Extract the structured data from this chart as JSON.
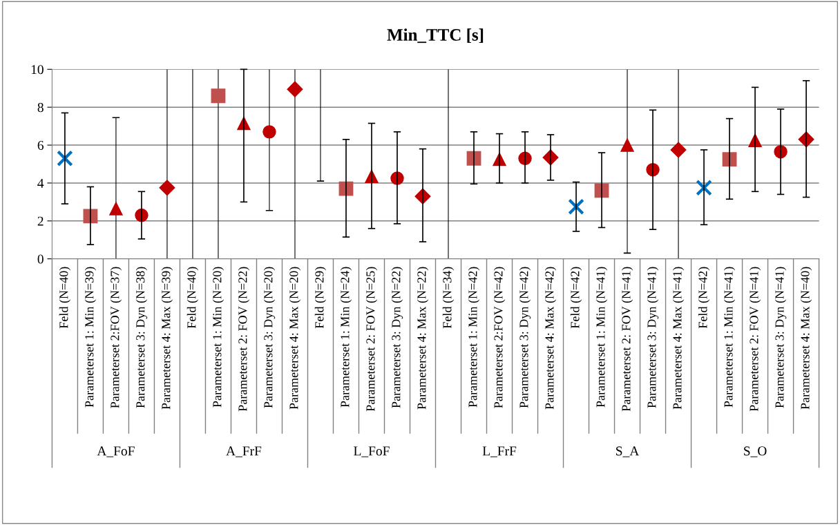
{
  "chart_data": {
    "type": "scatter",
    "title": "Min_TTC [s]",
    "categories": [
      "Feld (N=40)",
      "Parameterset 1: Min (N=39)",
      "Parameterset 2:FOV (N=37)",
      "Parameterset 3: Dyn (N=38)",
      "Parameterset 4: Max (N=39)",
      "Feld (N=40)",
      "Parameterset 1: Min (N=20)",
      "Parameterset 2: FOV (N=22)",
      "Parameterset 3: Dyn (N=20)",
      "Parameterset 4: Max (N=20)",
      "Feld (N=29)",
      "Parameterset 1: Min (N=24)",
      "Parameterset 2: FOV (N=25)",
      "Parameterset 3: Dyn (N=22)",
      "Parameterset 4: Max (N=22)",
      "Feld (N=34)",
      "Parameterset 1: Min (N=42)",
      "Parameterset 2:FOV (N=42)",
      "Parameterset 3: Dyn (N=42)",
      "Parameterset 4: Max (N=42)",
      "Feld (N=42)",
      "Parameterset 1: Min (N=41)",
      "Parameterset 2: FOV (N=41)",
      "Parameterset 3: Dyn (N=41)",
      "Parameterset 4: Max (N=41)",
      "Feld (N=42)",
      "Parameterset 1: Min (N=41)",
      "Parameterset 2: FOV (N=41)",
      "Parameterset 3: Dyn (N=41)",
      "Parameterset 4: Max (N=40)"
    ],
    "series": [
      {
        "color": "#0070c0",
        "marker": "cross",
        "values": [
          5.3,
          null,
          null,
          null,
          null,
          null,
          null,
          null,
          null,
          null,
          null,
          null,
          null,
          null,
          null,
          null,
          null,
          null,
          null,
          null,
          2.75,
          null,
          null,
          null,
          null,
          3.75,
          null,
          null,
          null,
          null
        ],
        "errors": [
          [
            2.9,
            7.7
          ],
          null,
          null,
          null,
          null,
          null,
          null,
          null,
          null,
          null,
          null,
          null,
          null,
          null,
          null,
          null,
          null,
          null,
          null,
          null,
          [
            1.45,
            4.05
          ],
          null,
          null,
          null,
          null,
          [
            1.8,
            5.75
          ],
          null,
          null,
          null,
          null
        ]
      },
      {
        "color": "#c0504d",
        "marker": "square",
        "values": [
          null,
          2.25,
          null,
          null,
          null,
          null,
          8.6,
          null,
          null,
          null,
          null,
          3.7,
          null,
          null,
          null,
          null,
          5.3,
          null,
          null,
          null,
          null,
          3.6,
          null,
          null,
          null,
          null,
          5.25,
          null,
          null,
          null
        ],
        "errors": [
          null,
          [
            0.75,
            3.8
          ],
          null,
          null,
          null,
          null,
          null,
          null,
          null,
          null,
          null,
          [
            1.15,
            6.3
          ],
          null,
          null,
          null,
          null,
          [
            3.95,
            6.7
          ],
          null,
          null,
          null,
          null,
          [
            1.65,
            5.6
          ],
          null,
          null,
          null,
          null,
          [
            3.15,
            7.4
          ],
          null,
          null,
          null
        ]
      },
      {
        "color": "#c00000",
        "marker": "triangle",
        "values": [
          null,
          null,
          2.65,
          null,
          null,
          null,
          null,
          7.15,
          null,
          null,
          null,
          null,
          4.35,
          null,
          null,
          null,
          null,
          5.25,
          null,
          null,
          null,
          null,
          6.0,
          null,
          null,
          null,
          null,
          6.25,
          null,
          null
        ],
        "errors": [
          null,
          null,
          null,
          null,
          null,
          null,
          null,
          [
            3.0,
            10
          ],
          null,
          null,
          null,
          null,
          [
            1.6,
            7.15
          ],
          null,
          null,
          null,
          null,
          [
            4.0,
            6.6
          ],
          null,
          null,
          null,
          null,
          null,
          null,
          null,
          null,
          null,
          [
            3.55,
            9.05
          ],
          null,
          null
        ]
      },
      {
        "color": "#c00000",
        "marker": "circle",
        "values": [
          null,
          null,
          null,
          2.3,
          null,
          null,
          null,
          null,
          6.7,
          null,
          null,
          null,
          null,
          4.25,
          null,
          null,
          null,
          null,
          5.3,
          null,
          null,
          null,
          null,
          4.7,
          null,
          null,
          null,
          null,
          5.65,
          null
        ],
        "errors": [
          null,
          null,
          null,
          [
            1.05,
            3.55
          ],
          null,
          null,
          null,
          null,
          null,
          null,
          null,
          null,
          null,
          [
            1.85,
            6.7
          ],
          null,
          null,
          null,
          null,
          [
            4.0,
            6.7
          ],
          null,
          null,
          null,
          null,
          [
            1.55,
            7.85
          ],
          null,
          null,
          null,
          null,
          [
            3.4,
            7.9
          ],
          null
        ]
      },
      {
        "color": "#c00000",
        "marker": "diamond",
        "values": [
          null,
          null,
          null,
          null,
          3.75,
          null,
          null,
          null,
          null,
          8.95,
          null,
          null,
          null,
          null,
          3.3,
          null,
          null,
          null,
          null,
          5.35,
          null,
          null,
          null,
          null,
          5.75,
          null,
          null,
          null,
          null,
          6.3
        ],
        "errors": [
          null,
          null,
          null,
          null,
          null,
          null,
          null,
          null,
          null,
          null,
          null,
          null,
          null,
          null,
          [
            0.9,
            5.8
          ],
          null,
          null,
          null,
          null,
          [
            4.15,
            6.55
          ],
          null,
          null,
          null,
          null,
          null,
          null,
          null,
          null,
          null,
          [
            3.25,
            9.4
          ]
        ]
      },
      {
        "type": "bar",
        "color": "#000000",
        "base": [
          null,
          null,
          0,
          null,
          0,
          0,
          0,
          null,
          2.55,
          0,
          4.1,
          null,
          null,
          null,
          null,
          0,
          null,
          null,
          null,
          null,
          null,
          null,
          0.3,
          null,
          0,
          null,
          null,
          null,
          null,
          null
        ],
        "values": [
          null,
          null,
          7.45,
          null,
          10,
          10,
          10,
          null,
          7.45,
          10,
          5.9,
          null,
          null,
          null,
          null,
          10,
          null,
          null,
          null,
          null,
          null,
          null,
          9.7,
          null,
          10,
          null,
          null,
          null,
          null,
          null
        ]
      }
    ],
    "ylim": [
      0,
      10
    ],
    "yticks": [
      0,
      2,
      4,
      6,
      8,
      10
    ],
    "grid": "y",
    "annotations": [
      "A_FoF",
      "A_FrF",
      "L_FoF",
      "L_FrF",
      "S_A",
      "S_O"
    ]
  }
}
